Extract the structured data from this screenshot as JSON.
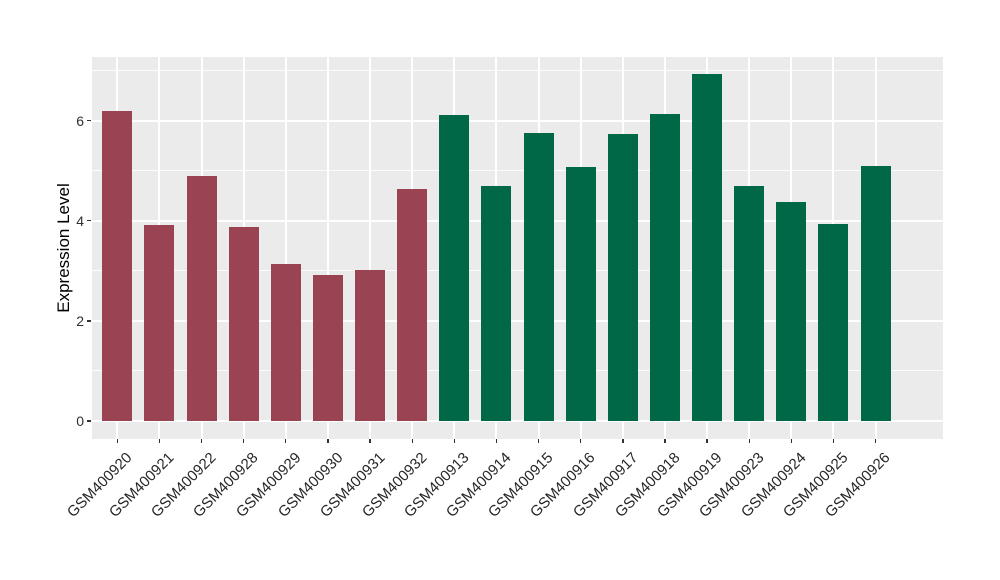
{
  "chart_data": {
    "type": "bar",
    "title": "",
    "xlabel": "",
    "ylabel": "Expression Level",
    "categories": [
      "GSM400920",
      "GSM400921",
      "GSM400922",
      "GSM400928",
      "GSM400929",
      "GSM400930",
      "GSM400931",
      "GSM400932",
      "GSM400913",
      "GSM400914",
      "GSM400915",
      "GSM400916",
      "GSM400917",
      "GSM400918",
      "GSM400919",
      "GSM400923",
      "GSM400924",
      "GSM400925",
      "GSM400926"
    ],
    "values": [
      6.2,
      3.92,
      4.9,
      3.87,
      3.14,
      2.91,
      3.01,
      4.63,
      6.12,
      4.69,
      5.75,
      5.07,
      5.73,
      6.14,
      6.93,
      4.7,
      4.37,
      3.93,
      5.1
    ],
    "bar_colors": [
      "#9A4453",
      "#9A4453",
      "#9A4453",
      "#9A4453",
      "#9A4453",
      "#9A4453",
      "#9A4453",
      "#9A4453",
      "#006847",
      "#006847",
      "#006847",
      "#006847",
      "#006847",
      "#006847",
      "#006847",
      "#006847",
      "#006847",
      "#006847",
      "#006847"
    ],
    "group_colors": {
      "left_group": "#9A4453",
      "right_group": "#006847"
    },
    "yticks_major": [
      0,
      2,
      4,
      6
    ],
    "yticks_minor": [
      1,
      3,
      5,
      7
    ],
    "ylim": [
      -0.36,
      7.27
    ],
    "grid": "on",
    "legend_position": "none",
    "panel_background": "#EBEBEB",
    "gridline_color": "#FFFFFF",
    "tick_color": "#333333"
  }
}
